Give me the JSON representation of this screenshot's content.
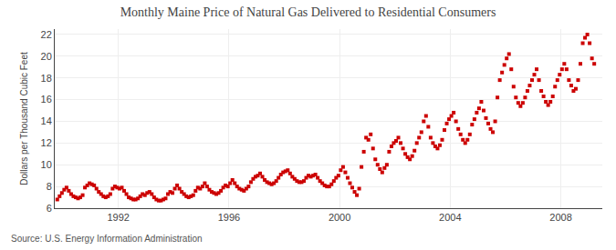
{
  "chart_data": {
    "type": "scatter",
    "title": "Monthly Maine Price of Natural Gas Delivered to Residential Consumers",
    "ylabel": "Dollars per Thousand Cubic Feet",
    "annotations": [
      "Source: U.S. Energy Information Administration"
    ],
    "color": "#cc0000",
    "marker": "square",
    "grid": true,
    "xlim": [
      1989.7,
      2009.5
    ],
    "xticks": [
      1992,
      1996,
      2000,
      2004,
      2008
    ],
    "ylim": [
      6,
      22.5
    ],
    "yticks": [
      6,
      8,
      10,
      12,
      14,
      16,
      18,
      20,
      22
    ],
    "x": [
      1989.7916667,
      1989.875,
      1989.9583333,
      1990.0416667,
      1990.125,
      1990.2083333,
      1990.2916667,
      1990.375,
      1990.4583333,
      1990.5416667,
      1990.625,
      1990.7083333,
      1990.7916667,
      1990.875,
      1990.9583333,
      1991.0416667,
      1991.125,
      1991.2083333,
      1991.2916667,
      1991.375,
      1991.4583333,
      1991.5416667,
      1991.625,
      1991.7083333,
      1991.7916667,
      1991.875,
      1991.9583333,
      1992.0416667,
      1992.125,
      1992.2083333,
      1992.2916667,
      1992.375,
      1992.4583333,
      1992.5416667,
      1992.625,
      1992.7083333,
      1992.7916667,
      1992.875,
      1992.9583333,
      1993.0416667,
      1993.125,
      1993.2083333,
      1993.2916667,
      1993.375,
      1993.4583333,
      1993.5416667,
      1993.625,
      1993.7083333,
      1993.7916667,
      1993.875,
      1993.9583333,
      1994.0416667,
      1994.125,
      1994.2083333,
      1994.2916667,
      1994.375,
      1994.4583333,
      1994.5416667,
      1994.625,
      1994.7083333,
      1994.7916667,
      1994.875,
      1994.9583333,
      1995.0416667,
      1995.125,
      1995.2083333,
      1995.2916667,
      1995.375,
      1995.4583333,
      1995.5416667,
      1995.625,
      1995.7083333,
      1995.7916667,
      1995.875,
      1995.9583333,
      1996.0416667,
      1996.125,
      1996.2083333,
      1996.2916667,
      1996.375,
      1996.4583333,
      1996.5416667,
      1996.625,
      1996.7083333,
      1996.7916667,
      1996.875,
      1996.9583333,
      1997.0416667,
      1997.125,
      1997.2083333,
      1997.2916667,
      1997.375,
      1997.4583333,
      1997.5416667,
      1997.625,
      1997.7083333,
      1997.7916667,
      1997.875,
      1997.9583333,
      1998.0416667,
      1998.125,
      1998.2083333,
      1998.2916667,
      1998.375,
      1998.4583333,
      1998.5416667,
      1998.625,
      1998.7083333,
      1998.7916667,
      1998.875,
      1998.9583333,
      1999.0416667,
      1999.125,
      1999.2083333,
      1999.2916667,
      1999.375,
      1999.4583333,
      1999.5416667,
      1999.625,
      1999.7083333,
      1999.7916667,
      1999.875,
      1999.9583333,
      2000.0416667,
      2000.125,
      2000.2083333,
      2000.2916667,
      2000.375,
      2000.4583333,
      2000.5416667,
      2000.625,
      2000.7083333,
      2000.7916667,
      2000.875,
      2000.9583333,
      2001.0416667,
      2001.125,
      2001.2083333,
      2001.2916667,
      2001.375,
      2001.4583333,
      2001.5416667,
      2001.625,
      2001.7083333,
      2001.7916667,
      2001.875,
      2001.9583333,
      2002.0416667,
      2002.125,
      2002.2083333,
      2002.2916667,
      2002.375,
      2002.4583333,
      2002.5416667,
      2002.625,
      2002.7083333,
      2002.7916667,
      2002.875,
      2002.9583333,
      2003.0416667,
      2003.125,
      2003.2083333,
      2003.2916667,
      2003.375,
      2003.4583333,
      2003.5416667,
      2003.625,
      2003.7083333,
      2003.7916667,
      2003.875,
      2003.9583333,
      2004.0416667,
      2004.125,
      2004.2083333,
      2004.2916667,
      2004.375,
      2004.4583333,
      2004.5416667,
      2004.625,
      2004.7083333,
      2004.7916667,
      2004.875,
      2004.9583333,
      2005.0416667,
      2005.125,
      2005.2083333,
      2005.2916667,
      2005.375,
      2005.4583333,
      2005.5416667,
      2005.625,
      2005.7083333,
      2005.7916667,
      2005.875,
      2005.9583333,
      2006.0416667,
      2006.125,
      2006.2083333,
      2006.2916667,
      2006.375,
      2006.4583333,
      2006.5416667,
      2006.625,
      2006.7083333,
      2006.7916667,
      2006.875,
      2006.9583333,
      2007.0416667,
      2007.125,
      2007.2083333,
      2007.2916667,
      2007.375,
      2007.4583333,
      2007.5416667,
      2007.625,
      2007.7083333,
      2007.7916667,
      2007.875,
      2007.9583333,
      2008.0416667,
      2008.125,
      2008.2083333,
      2008.2916667,
      2008.375,
      2008.4583333,
      2008.5416667,
      2008.625,
      2008.7083333,
      2008.7916667,
      2008.875,
      2008.9583333,
      2009.0416667,
      2009.125,
      2009.2083333
    ],
    "values": [
      6.8,
      7.1,
      7.4,
      7.7,
      7.9,
      7.6,
      7.3,
      7.1,
      7.0,
      6.9,
      7.0,
      7.2,
      7.9,
      8.1,
      8.3,
      8.2,
      8.1,
      7.8,
      7.5,
      7.3,
      7.1,
      7.0,
      7.1,
      7.3,
      7.8,
      8.0,
      7.9,
      7.8,
      7.9,
      7.6,
      7.3,
      7.0,
      6.9,
      6.8,
      6.8,
      6.9,
      7.1,
      7.3,
      7.2,
      7.4,
      7.5,
      7.3,
      7.0,
      6.8,
      6.7,
      6.7,
      6.8,
      6.9,
      7.3,
      7.5,
      7.4,
      7.8,
      8.1,
      7.8,
      7.5,
      7.3,
      7.1,
      7.0,
      7.1,
      7.2,
      7.6,
      7.9,
      7.8,
      8.0,
      8.3,
      8.0,
      7.7,
      7.5,
      7.4,
      7.3,
      7.4,
      7.6,
      7.9,
      8.1,
      8.0,
      8.3,
      8.6,
      8.3,
      8.0,
      7.8,
      7.7,
      7.6,
      7.8,
      8.0,
      8.4,
      8.7,
      8.9,
      9.0,
      9.2,
      8.9,
      8.6,
      8.4,
      8.3,
      8.2,
      8.3,
      8.5,
      8.8,
      9.1,
      9.3,
      9.4,
      9.5,
      9.2,
      8.9,
      8.7,
      8.5,
      8.4,
      8.4,
      8.5,
      8.8,
      9.0,
      8.9,
      9.0,
      9.1,
      8.8,
      8.5,
      8.3,
      8.1,
      8.0,
      8.0,
      8.2,
      8.5,
      8.8,
      9.0,
      9.5,
      9.8,
      9.3,
      8.8,
      8.3,
      7.9,
      7.5,
      7.2,
      7.8,
      9.8,
      11.2,
      12.5,
      12.3,
      12.8,
      11.5,
      10.5,
      10.0,
      9.6,
      9.3,
      9.7,
      10.0,
      11.2,
      11.7,
      12.0,
      12.2,
      12.5,
      12.0,
      11.5,
      11.0,
      10.7,
      10.5,
      10.8,
      11.3,
      12.0,
      12.5,
      13.0,
      14.0,
      14.5,
      13.5,
      12.5,
      12.0,
      11.7,
      11.5,
      11.8,
      12.3,
      13.2,
      13.8,
      14.2,
      14.5,
      14.8,
      14.0,
      13.3,
      12.8,
      12.3,
      12.0,
      12.3,
      12.8,
      13.7,
      14.2,
      14.8,
      15.2,
      15.8,
      15.0,
      14.3,
      13.8,
      13.3,
      13.0,
      14.0,
      16.2,
      17.8,
      18.5,
      19.2,
      19.8,
      20.2,
      18.8,
      17.2,
      16.2,
      15.7,
      15.4,
      15.7,
      16.2,
      16.8,
      17.3,
      17.8,
      18.3,
      18.8,
      17.8,
      16.8,
      16.3,
      15.8,
      15.5,
      15.8,
      16.3,
      17.2,
      17.8,
      18.3,
      18.8,
      19.3,
      18.8,
      17.8,
      17.3,
      16.8,
      17.0,
      17.8,
      19.3,
      21.2,
      21.7,
      22.0,
      21.2,
      19.8,
      19.3
    ]
  }
}
